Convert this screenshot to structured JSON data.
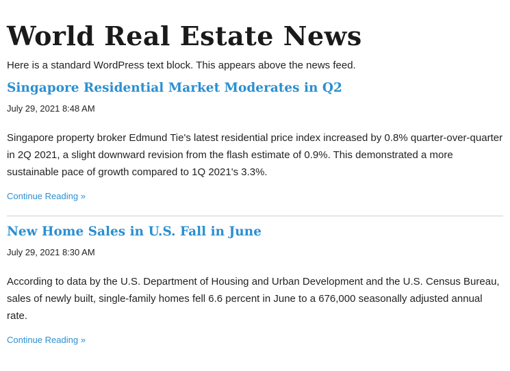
{
  "site": {
    "title": "World Real Estate News",
    "intro": "Here is a standard WordPress text block. This appears above the news feed."
  },
  "posts": [
    {
      "title": "Singapore Residential Market Moderates in Q2",
      "date": "July 29, 2021 8:48 AM",
      "body": "Singapore property broker Edmund Tie's latest residential price index increased by 0.8% quarter-over-quarter in 2Q 2021, a slight downward revision from the flash estimate of 0.9%. This demonstrated a more sustainable pace of growth compared to 1Q 2021's 3.3%.",
      "read_more": "Continue Reading »"
    },
    {
      "title": "New Home Sales in U.S. Fall in June",
      "date": "July 29, 2021 8:30 AM",
      "body": "According to data by the U.S. Department of Housing and Urban Development and the U.S. Census Bureau, sales of newly built, single-family homes fell 6.6 percent in June to a 676,000 seasonally adjusted annual rate.",
      "read_more": "Continue Reading »"
    }
  ],
  "colors": {
    "link": "#2b8fd0",
    "text": "#222222",
    "divider": "#cfcfcf"
  }
}
